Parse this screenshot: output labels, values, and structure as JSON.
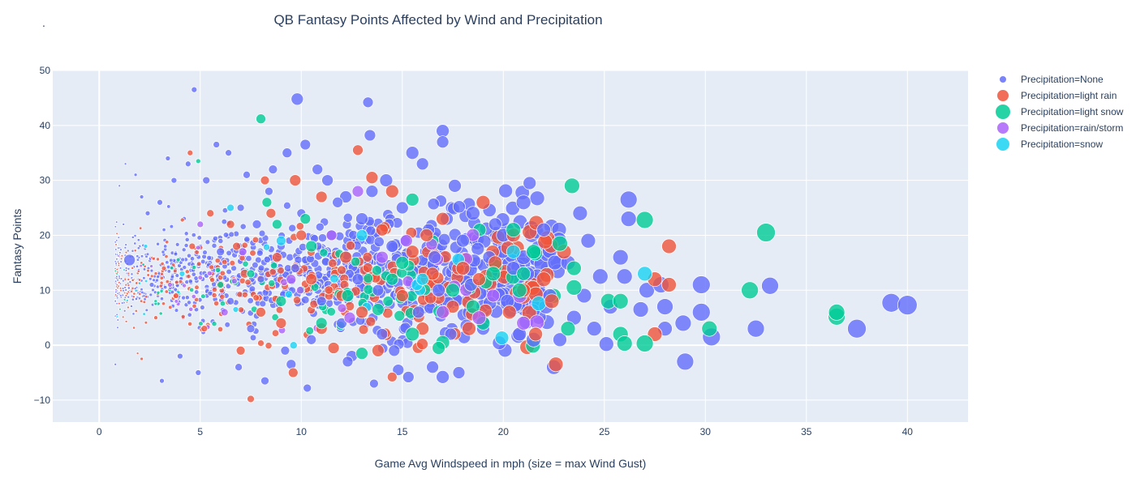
{
  "page": {
    "corner_mark": "."
  },
  "chart_data": {
    "type": "scatter",
    "title": "QB Fantasy Points Affected by Wind and Precipitation",
    "xlabel": "Game Avg Windspeed in mph (size = max Wind Gust)",
    "ylabel": "Fantasy Points",
    "xlim": [
      -2.3,
      43
    ],
    "ylim": [
      -14,
      50
    ],
    "xticks": [
      0,
      5,
      10,
      15,
      20,
      25,
      30,
      35,
      40
    ],
    "yticks": [
      -10,
      0,
      10,
      20,
      30,
      40,
      50
    ],
    "grid": true,
    "legend_position": "top-right",
    "plot_bgcolor": "#e5ecf6",
    "series": [
      {
        "name": "Precipitation=None",
        "color": "#636efa",
        "points": [
          [
            0.8,
            -3.5,
            3
          ],
          [
            1.0,
            29,
            3
          ],
          [
            1.2,
            22,
            3
          ],
          [
            1.5,
            15.5,
            14
          ],
          [
            1.3,
            33,
            3
          ],
          [
            1.8,
            31,
            4
          ],
          [
            2.1,
            27,
            5
          ],
          [
            2.4,
            24,
            6
          ],
          [
            2.6,
            11,
            6
          ],
          [
            3.0,
            26,
            7
          ],
          [
            3.1,
            -6.5,
            6
          ],
          [
            3.4,
            34,
            6
          ],
          [
            3.7,
            30,
            7
          ],
          [
            4.0,
            -2,
            7
          ],
          [
            4.4,
            33,
            7
          ],
          [
            4.7,
            46.5,
            7
          ],
          [
            4.9,
            -5,
            7
          ],
          [
            5.3,
            30,
            9
          ],
          [
            5.8,
            36.5,
            8
          ],
          [
            6.0,
            17,
            10
          ],
          [
            6.4,
            35,
            8
          ],
          [
            6.9,
            -4,
            9
          ],
          [
            7.3,
            31,
            9
          ],
          [
            7.8,
            22,
            11
          ],
          [
            8.2,
            -6.5,
            10
          ],
          [
            8.6,
            32,
            11
          ],
          [
            9.3,
            35,
            12
          ],
          [
            9.5,
            -3.5,
            12
          ],
          [
            9.8,
            44.8,
            15
          ],
          [
            10.2,
            36.5,
            13
          ],
          [
            10.3,
            -7.8,
            10
          ],
          [
            10.8,
            32,
            13
          ],
          [
            11.3,
            30,
            14
          ],
          [
            12.2,
            27,
            15
          ],
          [
            12.5,
            -2,
            14
          ],
          [
            13.0,
            23,
            15
          ],
          [
            13.3,
            44.2,
            13
          ],
          [
            13.4,
            38.2,
            14
          ],
          [
            13.6,
            -7,
            11
          ],
          [
            14.2,
            30,
            16
          ],
          [
            14.8,
            -4.5,
            14
          ],
          [
            15.3,
            -5.8,
            14
          ],
          [
            15.5,
            35,
            16
          ],
          [
            16.0,
            33,
            15
          ],
          [
            16.5,
            -4,
            15
          ],
          [
            17.0,
            39,
            16
          ],
          [
            17.0,
            37,
            15
          ],
          [
            17.0,
            -5.8,
            16
          ],
          [
            17.6,
            29,
            16
          ],
          [
            17.8,
            -5,
            15
          ],
          [
            18.5,
            24,
            17
          ],
          [
            19.3,
            16,
            16
          ],
          [
            20.0,
            20,
            17
          ],
          [
            20.5,
            14,
            17
          ],
          [
            21.0,
            16,
            18
          ],
          [
            21.3,
            29.5,
            16
          ],
          [
            21.0,
            26,
            18
          ],
          [
            21.5,
            1,
            18
          ],
          [
            22.0,
            21,
            17
          ],
          [
            22.5,
            -4,
            18
          ],
          [
            23.2,
            15,
            18
          ],
          [
            23.8,
            24,
            18
          ],
          [
            24.2,
            19,
            18
          ],
          [
            24.8,
            12.5,
            19
          ],
          [
            25.1,
            0.2,
            18
          ],
          [
            25.8,
            16,
            19
          ],
          [
            26.0,
            12.5,
            19
          ],
          [
            26.2,
            26.5,
            21
          ],
          [
            26.2,
            23,
            19
          ],
          [
            26.8,
            6.5,
            19
          ],
          [
            27.1,
            10,
            19
          ],
          [
            27.8,
            11,
            20
          ],
          [
            28.0,
            7,
            20
          ],
          [
            28.0,
            3,
            18
          ],
          [
            28.9,
            4,
            20
          ],
          [
            29.0,
            -3,
            21
          ],
          [
            29.8,
            11,
            22
          ],
          [
            29.8,
            6,
            22
          ],
          [
            30.3,
            1.5,
            22
          ],
          [
            32.5,
            3,
            21
          ],
          [
            33.2,
            10.8,
            21
          ],
          [
            37.5,
            3,
            23
          ],
          [
            39.2,
            7.7,
            23
          ],
          [
            40.0,
            7.3,
            24
          ],
          [
            8.0,
            12,
            9
          ],
          [
            9.0,
            18,
            10
          ],
          [
            10.0,
            24,
            11
          ],
          [
            11.0,
            8,
            12
          ],
          [
            11.5,
            20,
            13
          ],
          [
            12.0,
            4,
            13
          ],
          [
            12.8,
            12,
            14
          ],
          [
            13.5,
            28,
            15
          ],
          [
            14.0,
            2,
            14
          ],
          [
            14.5,
            18,
            15
          ],
          [
            15.0,
            25,
            15
          ],
          [
            15.8,
            6,
            15
          ],
          [
            16.3,
            21,
            15
          ],
          [
            16.8,
            10,
            16
          ],
          [
            17.4,
            2,
            15
          ],
          [
            18.0,
            19,
            16
          ],
          [
            18.4,
            11,
            16
          ],
          [
            19.0,
            3,
            16
          ],
          [
            19.6,
            22,
            16
          ],
          [
            20.2,
            8,
            17
          ],
          [
            20.8,
            2,
            17
          ],
          [
            21.2,
            13,
            17
          ],
          [
            22.3,
            9,
            17
          ],
          [
            22.8,
            1,
            17
          ],
          [
            23.5,
            5,
            18
          ],
          [
            24.0,
            9,
            18
          ],
          [
            24.5,
            3,
            18
          ],
          [
            25.3,
            7,
            18
          ],
          [
            6.5,
            8,
            9
          ],
          [
            7.0,
            25,
            9
          ],
          [
            7.5,
            3,
            10
          ],
          [
            8.4,
            28,
            10
          ],
          [
            9.2,
            -1,
            11
          ],
          [
            9.7,
            14,
            11
          ],
          [
            10.5,
            1,
            12
          ],
          [
            11.8,
            26,
            13
          ],
          [
            12.3,
            -3,
            13
          ],
          [
            13.8,
            10,
            14
          ],
          [
            14.6,
            -1,
            14
          ],
          [
            16.6,
            16,
            16
          ],
          [
            17.2,
            23,
            16
          ]
        ]
      },
      {
        "name": "Precipitation=light rain",
        "color": "#ef553b",
        "points": [
          [
            1.9,
            -1.5,
            3
          ],
          [
            2.1,
            -2.5,
            4
          ],
          [
            2.8,
            5,
            5
          ],
          [
            3.2,
            14,
            6
          ],
          [
            3.8,
            9,
            7
          ],
          [
            4.5,
            35,
            7
          ],
          [
            4.6,
            18,
            8
          ],
          [
            5.2,
            3,
            8
          ],
          [
            5.5,
            24,
            9
          ],
          [
            6.0,
            11,
            10
          ],
          [
            6.5,
            22,
            10
          ],
          [
            7.0,
            -1,
            11
          ],
          [
            7.2,
            13,
            11
          ],
          [
            7.5,
            -9.8,
            9
          ],
          [
            8.0,
            6,
            12
          ],
          [
            8.5,
            24,
            12
          ],
          [
            8.8,
            16,
            12
          ],
          [
            9.0,
            4,
            13
          ],
          [
            9.6,
            -5,
            12
          ],
          [
            9.7,
            30,
            14
          ],
          [
            10.0,
            20,
            13
          ],
          [
            10.5,
            12,
            14
          ],
          [
            11.0,
            27,
            14
          ],
          [
            11.6,
            -0.5,
            14
          ],
          [
            12.2,
            16,
            15
          ],
          [
            12.8,
            35.5,
            13
          ],
          [
            13.0,
            6,
            15
          ],
          [
            13.5,
            30.5,
            15
          ],
          [
            14.0,
            21,
            15
          ],
          [
            14.5,
            -5.8,
            12
          ],
          [
            14.5,
            28,
            16
          ],
          [
            15.0,
            9,
            15
          ],
          [
            15.5,
            17,
            16
          ],
          [
            16.0,
            3,
            16
          ],
          [
            16.5,
            13,
            16
          ],
          [
            17.0,
            23,
            16
          ],
          [
            17.5,
            7,
            16
          ],
          [
            18.0,
            14,
            17
          ],
          [
            18.3,
            3,
            17
          ],
          [
            19.0,
            26,
            17
          ],
          [
            19.6,
            15,
            17
          ],
          [
            20.3,
            6,
            17
          ],
          [
            20.5,
            20,
            17
          ],
          [
            21.0,
            10,
            17
          ],
          [
            21.6,
            2,
            17
          ],
          [
            22.0,
            12,
            18
          ],
          [
            22.6,
            -3.5,
            18
          ],
          [
            22.4,
            8,
            18
          ],
          [
            23.0,
            17,
            18
          ],
          [
            27.5,
            2,
            18
          ],
          [
            27.5,
            12,
            18
          ],
          [
            28.2,
            18,
            18
          ],
          [
            28.2,
            11,
            18
          ],
          [
            11.0,
            3,
            14
          ],
          [
            12.0,
            9,
            14
          ],
          [
            13.8,
            -1,
            15
          ],
          [
            16.2,
            20,
            16
          ],
          [
            18.8,
            12,
            16
          ],
          [
            8.2,
            30,
            11
          ],
          [
            6.8,
            18,
            10
          ]
        ]
      },
      {
        "name": "Precipitation=light snow",
        "color": "#00cc96",
        "points": [
          [
            4.9,
            33.5,
            6
          ],
          [
            6.0,
            11,
            8
          ],
          [
            7.5,
            13,
            10
          ],
          [
            8.0,
            41.2,
            12
          ],
          [
            8.3,
            26,
            12
          ],
          [
            9.0,
            8,
            13
          ],
          [
            10.5,
            18,
            14
          ],
          [
            11.0,
            4,
            14
          ],
          [
            12.3,
            9,
            15
          ],
          [
            13.0,
            -1.5,
            15
          ],
          [
            13.8,
            6.5,
            15
          ],
          [
            15.0,
            15,
            16
          ],
          [
            15.5,
            2,
            17
          ],
          [
            15.5,
            26.5,
            16
          ],
          [
            17.0,
            0.5,
            17
          ],
          [
            17.5,
            10,
            17
          ],
          [
            18.5,
            7,
            17
          ],
          [
            19.5,
            13,
            18
          ],
          [
            20.5,
            21,
            18
          ],
          [
            20.8,
            10,
            18
          ],
          [
            21.5,
            17,
            18
          ],
          [
            22.8,
            18.5,
            19
          ],
          [
            23.2,
            3,
            18
          ],
          [
            23.4,
            29,
            19
          ],
          [
            23.5,
            10.5,
            19
          ],
          [
            23.5,
            14,
            18
          ],
          [
            25.2,
            8,
            19
          ],
          [
            25.8,
            8,
            19
          ],
          [
            25.8,
            2,
            19
          ],
          [
            26.0,
            0.3,
            19
          ],
          [
            27.0,
            22.8,
            21
          ],
          [
            27.0,
            0.3,
            21
          ],
          [
            30.2,
            3,
            19
          ],
          [
            32.2,
            10,
            21
          ],
          [
            33.0,
            20.5,
            23
          ],
          [
            36.5,
            5.2,
            21
          ],
          [
            36.5,
            6,
            20
          ],
          [
            8.8,
            22,
            12
          ],
          [
            10.2,
            23,
            13
          ],
          [
            14.5,
            12,
            15
          ],
          [
            16.8,
            -0.5,
            16
          ],
          [
            19.0,
            4,
            17
          ],
          [
            21.0,
            13,
            17
          ]
        ]
      },
      {
        "name": "Precipitation=rain/storm",
        "color": "#ab63fa",
        "points": [
          [
            3.5,
            11,
            6
          ],
          [
            5.0,
            22,
            8
          ],
          [
            6.2,
            6,
            9
          ],
          [
            7.1,
            17,
            10
          ],
          [
            9.5,
            12,
            12
          ],
          [
            11.5,
            20,
            13
          ],
          [
            12.4,
            5,
            14
          ],
          [
            14.0,
            16,
            15
          ],
          [
            15.2,
            19,
            15
          ],
          [
            17.0,
            6,
            16
          ],
          [
            18.8,
            5,
            17
          ],
          [
            19.5,
            9,
            16
          ],
          [
            21.0,
            4,
            17
          ],
          [
            12.8,
            28,
            14
          ]
        ]
      },
      {
        "name": "Precipitation=snow",
        "color": "#19d3f3",
        "points": [
          [
            2.3,
            18,
            5
          ],
          [
            4.1,
            13,
            7
          ],
          [
            6.5,
            25,
            9
          ],
          [
            9.0,
            19,
            12
          ],
          [
            13.0,
            20,
            14
          ],
          [
            16.0,
            12,
            15
          ],
          [
            20.5,
            17,
            17
          ],
          [
            27.0,
            13,
            18
          ]
        ]
      }
    ]
  }
}
